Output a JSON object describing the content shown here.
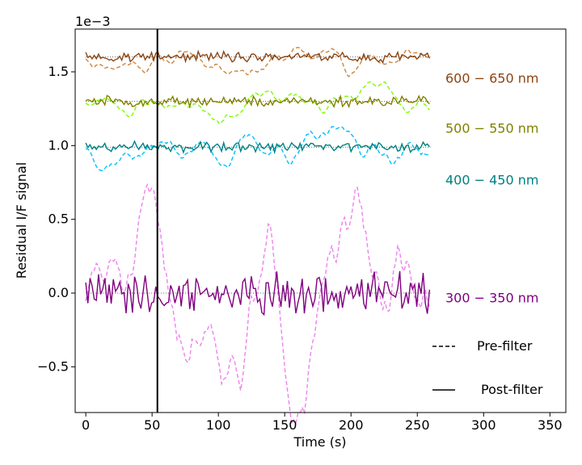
{
  "chart_data": {
    "type": "line",
    "xlabel": "Time (s)",
    "ylabel": "Residual I/F signal",
    "offset_label": "1e−3",
    "xlim": [
      -8,
      362
    ],
    "ylim": [
      -0.00081,
      0.00179
    ],
    "xticks": [
      0,
      50,
      100,
      150,
      200,
      250,
      300,
      350
    ],
    "yticks": [
      -0.0005,
      0.0,
      0.0005,
      0.001,
      0.0015
    ],
    "ytick_labels": [
      "−0.5",
      "0.0",
      "0.5",
      "1.0",
      "1.5"
    ],
    "vline_x": 54,
    "band_labels": [
      "600 − 650 nm",
      "500 − 550 nm",
      "400 − 450 nm",
      "300 − 350 nm"
    ],
    "legend": {
      "pre": "Pre-filter",
      "post": "Post-filter"
    },
    "series": [
      {
        "name": "600 − 650 nm",
        "baseline": 0.0016,
        "pre_color": "#cd853f",
        "post_color": "#8b4513",
        "label_color": "#8b4513",
        "pre_amp": 6e-05,
        "post_amp": 3e-05,
        "seed": 11
      },
      {
        "name": "500 − 550 nm",
        "baseline": 0.0013,
        "pre_color": "#7cfc00",
        "post_color": "#808000",
        "label_color": "#808000",
        "pre_amp": 6e-05,
        "post_amp": 3e-05,
        "seed": 23
      },
      {
        "name": "400 − 450 nm",
        "baseline": 0.00099,
        "pre_color": "#00bfff",
        "post_color": "#008080",
        "label_color": "#008080",
        "pre_amp": 7e-05,
        "post_amp": 3e-05,
        "seed": 37
      },
      {
        "name": "300 − 350 nm",
        "baseline": 0.0,
        "pre_color": "#ee82ee",
        "post_color": "#800080",
        "label_color": "#800080",
        "pre_amp": 0.0003,
        "post_amp": 0.00012,
        "seed": 51
      }
    ],
    "t_end": 260,
    "t_step": 1.6
  }
}
